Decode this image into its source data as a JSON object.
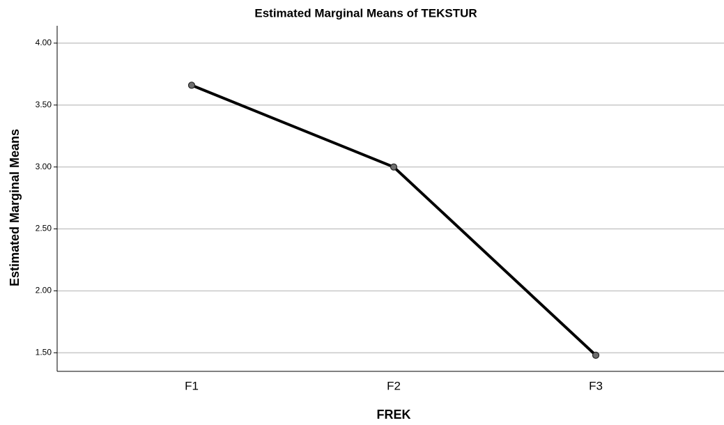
{
  "chart_data": {
    "type": "line",
    "title": "Estimated Marginal Means of TEKSTUR",
    "xlabel": "FREK",
    "ylabel": "Estimated Marginal Means",
    "categories": [
      "F1",
      "F2",
      "F3"
    ],
    "series": [
      {
        "name": null,
        "color": "#000000",
        "values": [
          3.66,
          3.0,
          1.48
        ]
      }
    ],
    "ylim": [
      1.35,
      4.14
    ],
    "yticks": [
      {
        "value": 1.5,
        "label": "1.50"
      },
      {
        "value": 2,
        "label": "2.00"
      },
      {
        "value": 2.5,
        "label": "2.50"
      },
      {
        "value": 3,
        "label": "3.00"
      },
      {
        "value": 3.5,
        "label": "3.50"
      },
      {
        "value": 4,
        "label": "4.00"
      }
    ],
    "grid": true
  }
}
